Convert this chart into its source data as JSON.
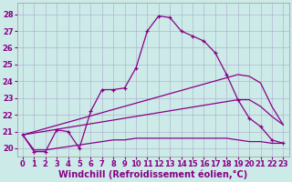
{
  "xlabel": "Windchill (Refroidissement éolien,°C)",
  "bg_color": "#cceae7",
  "line_color": "#880088",
  "xlim": [
    -0.5,
    23.5
  ],
  "ylim": [
    19.5,
    28.7
  ],
  "yticks": [
    20,
    21,
    22,
    23,
    24,
    25,
    26,
    27,
    28
  ],
  "xticks": [
    0,
    1,
    2,
    3,
    4,
    5,
    6,
    7,
    8,
    9,
    10,
    11,
    12,
    13,
    14,
    15,
    16,
    17,
    18,
    19,
    20,
    21,
    22,
    23
  ],
  "line1_x": [
    0,
    1,
    2,
    3,
    4,
    5,
    6,
    7,
    8,
    9,
    10,
    11,
    12,
    13,
    14,
    15,
    16,
    17,
    18,
    19,
    20,
    21,
    22,
    23
  ],
  "line1_y": [
    20.8,
    19.8,
    19.8,
    21.1,
    21.0,
    20.0,
    22.2,
    23.5,
    23.5,
    23.6,
    24.8,
    27.0,
    27.9,
    27.8,
    27.0,
    26.7,
    26.4,
    25.7,
    24.4,
    22.9,
    21.8,
    21.3,
    20.5,
    20.3
  ],
  "line2_x": [
    0,
    19,
    20,
    21,
    22,
    23
  ],
  "line2_y": [
    20.8,
    24.4,
    24.3,
    23.9,
    22.5,
    21.4
  ],
  "line3_x": [
    0,
    19,
    20,
    21,
    22,
    23
  ],
  "line3_y": [
    20.8,
    22.9,
    22.9,
    22.5,
    21.9,
    21.4
  ],
  "line4_x": [
    0,
    1,
    2,
    3,
    4,
    5,
    6,
    7,
    8,
    9,
    10,
    11,
    12,
    13,
    14,
    15,
    16,
    17,
    18,
    19,
    20,
    21,
    22,
    23
  ],
  "line4_y": [
    20.8,
    19.9,
    19.9,
    20.0,
    20.1,
    20.2,
    20.3,
    20.4,
    20.5,
    20.5,
    20.6,
    20.6,
    20.6,
    20.6,
    20.6,
    20.6,
    20.6,
    20.6,
    20.6,
    20.5,
    20.4,
    20.4,
    20.3,
    20.3
  ],
  "linewidth": 0.9,
  "xlabel_fontsize": 7,
  "tick_fontsize": 6
}
